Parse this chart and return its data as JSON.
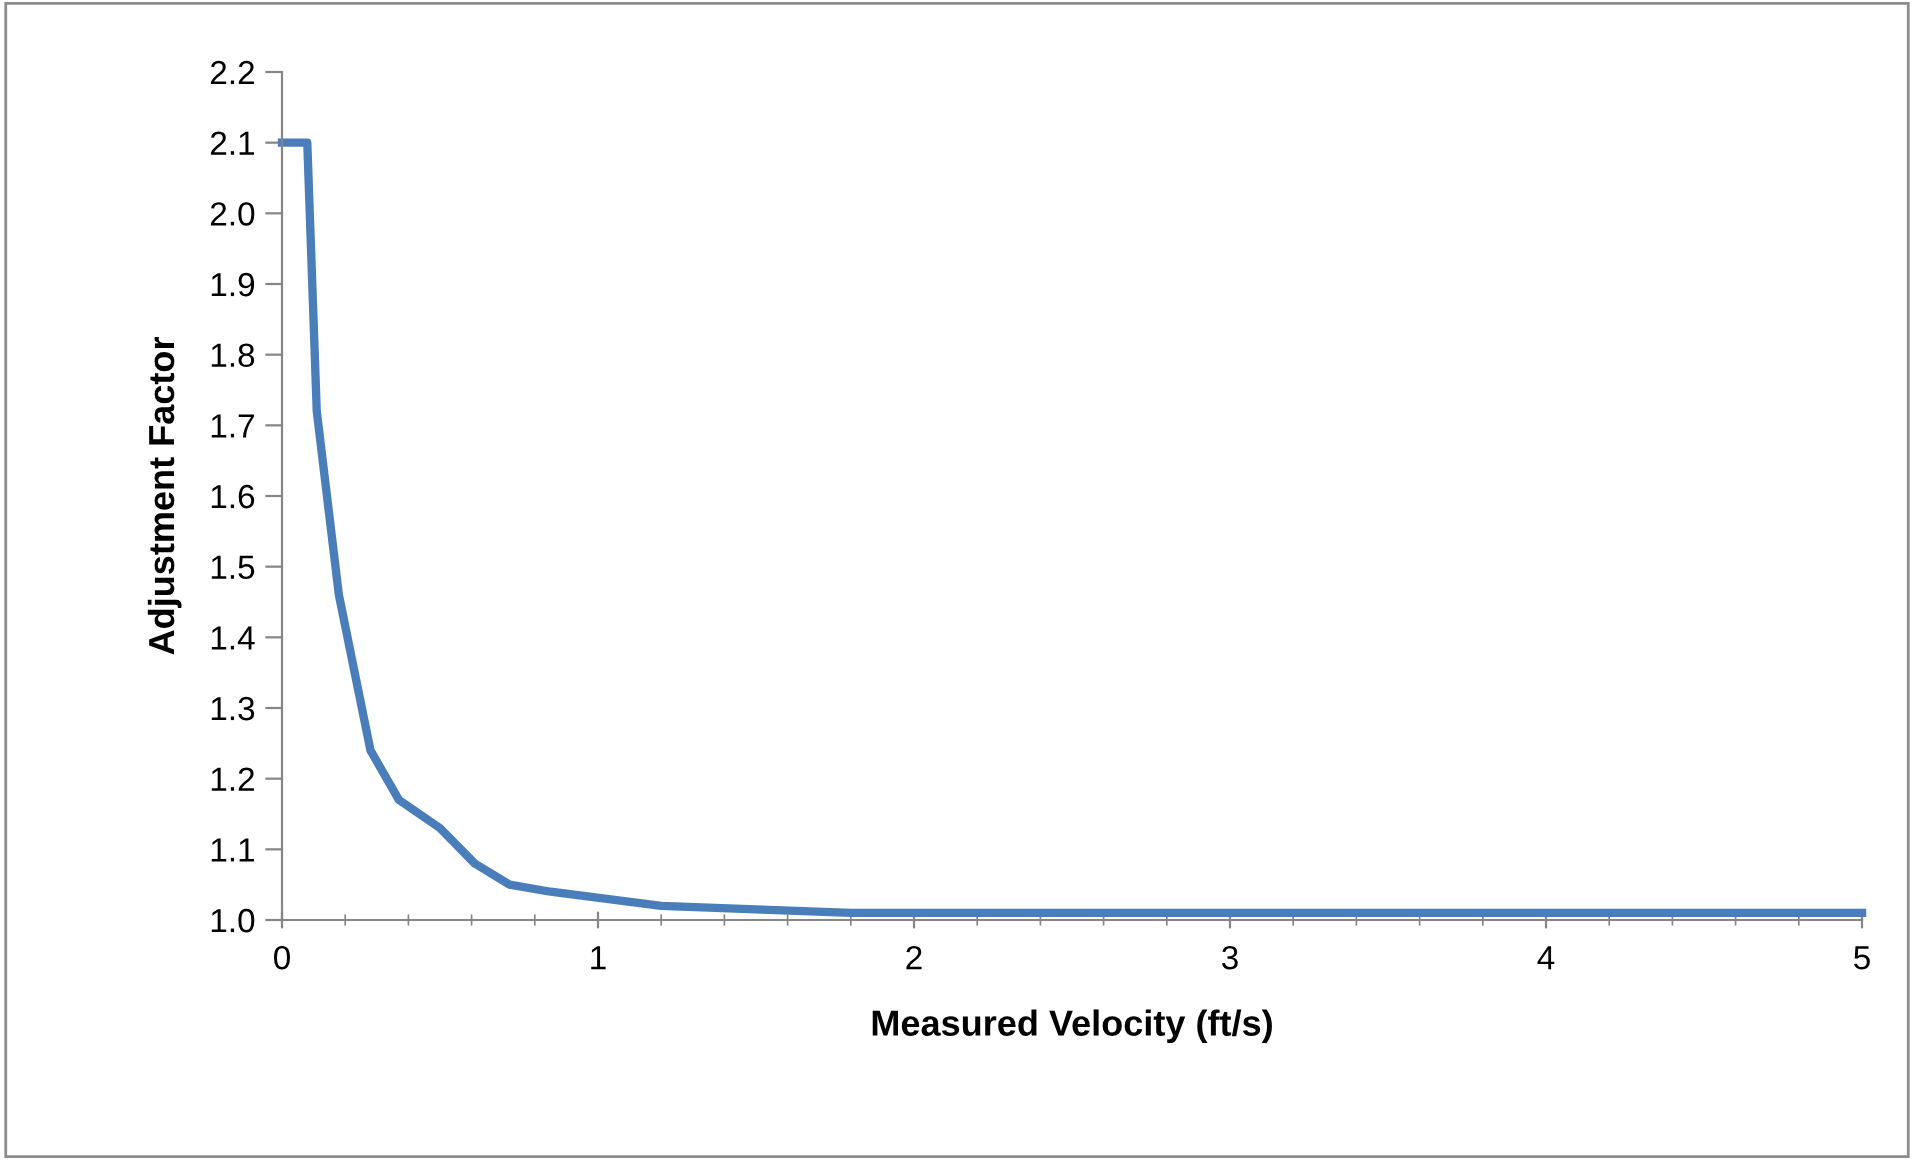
{
  "chart_data": {
    "type": "line",
    "xlabel": "Measured Velocity (ft/s)",
    "ylabel": "Adjustment Factor",
    "x": [
      0,
      0.08,
      0.11,
      0.18,
      0.28,
      0.37,
      0.5,
      0.61,
      0.72,
      0.85,
      1.2,
      1.5,
      1.8,
      5
    ],
    "series": [
      {
        "color": "#4a7ebb",
        "values": [
          2.1,
          2.1,
          1.72,
          1.46,
          1.24,
          1.17,
          1.13,
          1.08,
          1.05,
          1.04,
          1.02,
          1.015,
          1.01,
          1.01
        ]
      }
    ],
    "xlim": [
      0,
      5
    ],
    "ylim": [
      1.0,
      2.2
    ],
    "xticks": [
      0,
      {
        "value": 0.2,
        "label": null
      },
      {
        "value": 0.4,
        "label": null
      },
      {
        "value": 0.6,
        "label": null
      },
      {
        "value": 0.8,
        "label": null
      },
      1,
      {
        "value": 1.2,
        "label": null
      },
      {
        "value": 1.4,
        "label": null
      },
      {
        "value": 1.6,
        "label": null
      },
      {
        "value": 1.8,
        "label": null
      },
      2,
      {
        "value": 2.2,
        "label": null
      },
      {
        "value": 2.4,
        "label": null
      },
      {
        "value": 2.6,
        "label": null
      },
      {
        "value": 2.8,
        "label": null
      },
      3,
      {
        "value": 3.2,
        "label": null
      },
      {
        "value": 3.4,
        "label": null
      },
      {
        "value": 3.6,
        "label": null
      },
      {
        "value": 3.8,
        "label": null
      },
      4,
      {
        "value": 4.2,
        "label": null
      },
      {
        "value": 4.4,
        "label": null
      },
      {
        "value": 4.6,
        "label": null
      },
      {
        "value": 4.8,
        "label": null
      },
      5
    ],
    "yticks": [
      {
        "value": 1.0,
        "label": "1.0"
      },
      {
        "value": 1.1,
        "label": "1.1"
      },
      {
        "value": 1.2,
        "label": "1.2"
      },
      {
        "value": 1.3,
        "label": "1.3"
      },
      {
        "value": 1.4,
        "label": "1.4"
      },
      {
        "value": 1.5,
        "label": "1.5"
      },
      {
        "value": 1.6,
        "label": "1.6"
      },
      {
        "value": 1.7,
        "label": "1.7"
      },
      {
        "value": 1.8,
        "label": "1.8"
      },
      {
        "value": 1.9,
        "label": "1.9"
      },
      {
        "value": 2.0,
        "label": "2.0"
      },
      {
        "value": 2.1,
        "label": "2.1"
      },
      {
        "value": 2.2,
        "label": "2.2"
      }
    ],
    "grid": false,
    "line_style": "solid",
    "marker": "none"
  }
}
